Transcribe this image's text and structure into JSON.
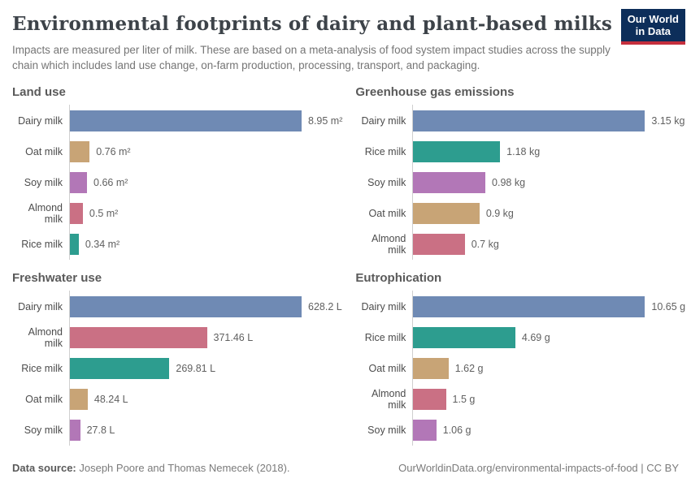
{
  "header": {
    "title": "Environmental footprints of dairy and plant-based milks",
    "subtitle": "Impacts are measured per liter of milk. These are based on a meta-analysis of food system impact studies across the supply chain which includes land use change, on-farm production, processing, transport, and packaging.",
    "logo": {
      "line1": "Our World",
      "line2": "in Data",
      "bg_color": "#0d2e5a",
      "accent_color": "#c52f3d"
    }
  },
  "colors": {
    "Dairy milk": "#6f8ab4",
    "Oat milk": "#c8a476",
    "Soy milk": "#b277b7",
    "Almond milk": "#ca7084",
    "Rice milk": "#2d9d8f"
  },
  "chart_data": [
    {
      "type": "bar",
      "orientation": "horizontal",
      "title": "Land use",
      "unit": "m²",
      "categories": [
        "Dairy milk",
        "Oat milk",
        "Soy milk",
        "Almond milk",
        "Rice milk"
      ],
      "values": [
        8.95,
        0.76,
        0.66,
        0.5,
        0.34
      ],
      "value_labels": [
        "8.95 m²",
        "0.76 m²",
        "0.66 m²",
        "0.5 m²",
        "0.34 m²"
      ]
    },
    {
      "type": "bar",
      "orientation": "horizontal",
      "title": "Greenhouse gas emissions",
      "unit": "kg",
      "categories": [
        "Dairy milk",
        "Rice milk",
        "Soy milk",
        "Oat milk",
        "Almond milk"
      ],
      "values": [
        3.15,
        1.18,
        0.98,
        0.9,
        0.7
      ],
      "value_labels": [
        "3.15 kg",
        "1.18 kg",
        "0.98 kg",
        "0.9 kg",
        "0.7 kg"
      ]
    },
    {
      "type": "bar",
      "orientation": "horizontal",
      "title": "Freshwater use",
      "unit": "L",
      "categories": [
        "Dairy milk",
        "Almond milk",
        "Rice milk",
        "Oat milk",
        "Soy milk"
      ],
      "values": [
        628.2,
        371.46,
        269.81,
        48.24,
        27.8
      ],
      "value_labels": [
        "628.2 L",
        "371.46 L",
        "269.81 L",
        "48.24 L",
        "27.8 L"
      ]
    },
    {
      "type": "bar",
      "orientation": "horizontal",
      "title": "Eutrophication",
      "unit": "g",
      "categories": [
        "Dairy milk",
        "Rice milk",
        "Oat milk",
        "Almond milk",
        "Soy milk"
      ],
      "values": [
        10.65,
        4.69,
        1.62,
        1.5,
        1.06
      ],
      "value_labels": [
        "10.65 g",
        "4.69 g",
        "1.62 g",
        "1.5 g",
        "1.06 g"
      ]
    }
  ],
  "footer": {
    "source_label": "Data source:",
    "source_text": " Joseph Poore and Thomas Nemecek (2018).",
    "right_text": "OurWorldinData.org/environmental-impacts-of-food | CC BY"
  }
}
